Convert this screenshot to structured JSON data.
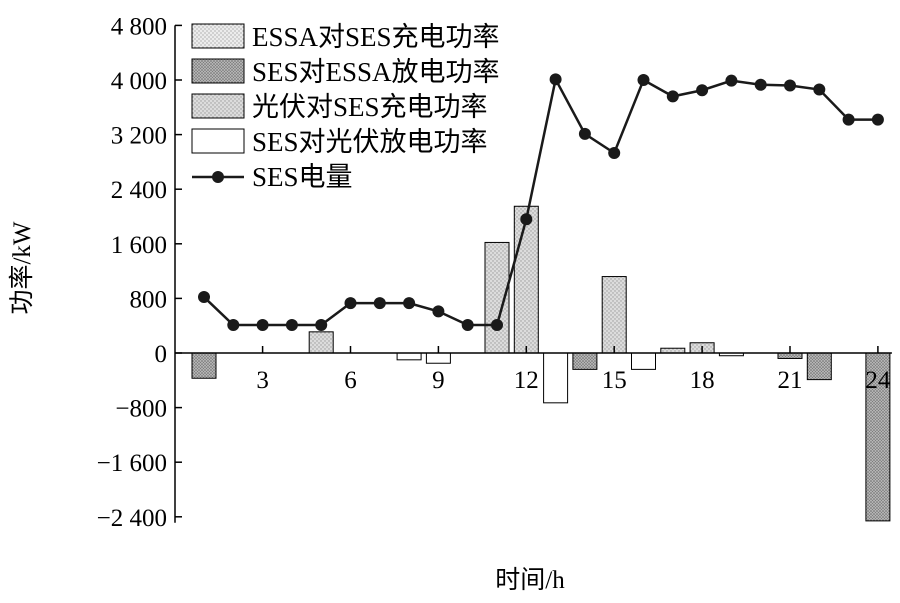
{
  "chart_data": {
    "type": "bar",
    "xlabel": "时间/h",
    "ylabel": "功率/kW",
    "ylim": [
      -2800,
      4800
    ],
    "y_ticks": [
      -2400,
      -1600,
      -800,
      0,
      800,
      1600,
      2400,
      3200,
      4000,
      4800
    ],
    "y_tick_labels": [
      "−2 400",
      "−1 600",
      "−800",
      "0",
      "800",
      "1 600",
      "2 400",
      "3 200",
      "4 000",
      "4 800"
    ],
    "x": [
      1,
      2,
      3,
      4,
      5,
      6,
      7,
      8,
      9,
      10,
      11,
      12,
      13,
      14,
      15,
      16,
      17,
      18,
      19,
      20,
      21,
      22,
      23,
      24
    ],
    "x_ticks": [
      3,
      6,
      9,
      12,
      15,
      18,
      21,
      24
    ],
    "x_tick_labels": [
      "3",
      "6",
      "9",
      "12",
      "15",
      "18",
      "21",
      "24"
    ],
    "legend_position": "top-left",
    "grid": false,
    "series": [
      {
        "name": "ESSA对SES充电功率",
        "kind": "bar",
        "pattern": "dots-light",
        "values": [
          0,
          0,
          0,
          0,
          0,
          0,
          0,
          0,
          0,
          0,
          0,
          0,
          0,
          0,
          0,
          0,
          0,
          0,
          0,
          0,
          0,
          0,
          0,
          0
        ]
      },
      {
        "name": "SES对ESSA放电功率",
        "kind": "bar",
        "pattern": "dots-dark",
        "values": [
          -370,
          0,
          0,
          0,
          0,
          0,
          0,
          0,
          0,
          0,
          0,
          0,
          0,
          -240,
          0,
          0,
          0,
          0,
          0,
          0,
          -80,
          -390,
          0,
          -2460
        ]
      },
      {
        "name": "光伏对SES充电功率",
        "kind": "bar",
        "pattern": "dots-medium",
        "values": [
          0,
          0,
          0,
          0,
          310,
          0,
          0,
          0,
          0,
          0,
          1620,
          2150,
          0,
          0,
          1120,
          0,
          70,
          150,
          0,
          0,
          0,
          0,
          0,
          0
        ]
      },
      {
        "name": "SES对光伏放电功率",
        "kind": "bar",
        "pattern": "none",
        "values": [
          0,
          0,
          0,
          0,
          0,
          0,
          0,
          -100,
          -150,
          0,
          0,
          0,
          -730,
          0,
          0,
          -240,
          0,
          0,
          -40,
          0,
          0,
          0,
          0,
          0
        ]
      },
      {
        "name": "SES电量",
        "kind": "line",
        "marker": "circle",
        "values": [
          820,
          410,
          410,
          410,
          410,
          730,
          730,
          730,
          610,
          410,
          410,
          1960,
          4010,
          3210,
          2930,
          4000,
          3760,
          3850,
          3990,
          3930,
          3920,
          3860,
          3420,
          3420
        ]
      }
    ]
  },
  "colors": {
    "axis": "#000000",
    "line": "#1a1a1a",
    "bar_fill_light": "#e6e6e6",
    "bar_fill_medium": "#d6d6d6",
    "bar_fill_dark": "#a9a9a9",
    "bar_fill_none": "#ffffff"
  }
}
